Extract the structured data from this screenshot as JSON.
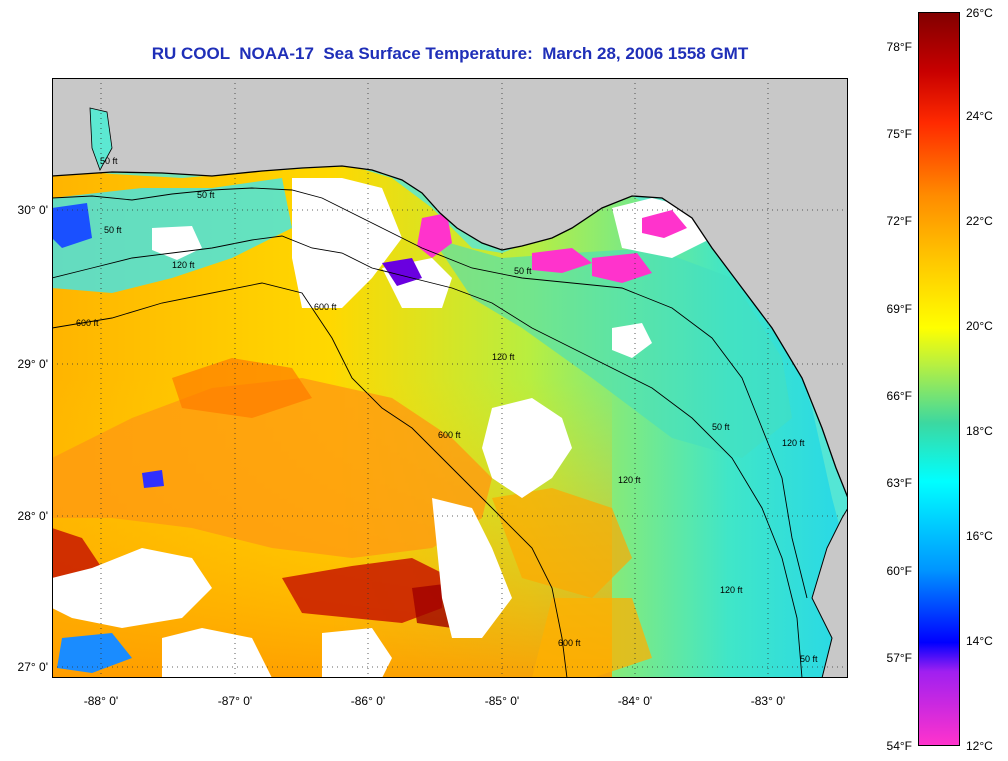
{
  "title": "RU COOL  NOAA-17  Sea Surface Temperature:  March 28, 2006 1558 GMT",
  "lat_labels": [
    "30° 0'",
    "29° 0'",
    "28° 0'",
    "27° 0'"
  ],
  "lon_labels": [
    "-88° 0'",
    "-87° 0'",
    "-86° 0'",
    "-85° 0'",
    "-84° 0'",
    "-83° 0'"
  ],
  "contour_labels": [
    "50 ft",
    "50 ft",
    "50 ft",
    "50 ft",
    "50 ft",
    "120 ft",
    "120 ft",
    "120 ft",
    "120 ft",
    "600 ft",
    "600 ft",
    "600 ft",
    "600 ft",
    "120 ft",
    "50 ft"
  ],
  "colorbar": {
    "fahrenheit": [
      "78°F",
      "75°F",
      "72°F",
      "69°F",
      "66°F",
      "63°F",
      "60°F",
      "57°F",
      "54°F"
    ],
    "celsius": [
      "26°C",
      "24°C",
      "22°C",
      "20°C",
      "18°C",
      "16°C",
      "14°C",
      "12°C"
    ]
  },
  "colors": {
    "land": "#c8c8c8",
    "cloud": "#ffffff",
    "title": "#1f2fb8",
    "scale": [
      "#ff33cc",
      "#a020f0",
      "#0000ff",
      "#0096ff",
      "#00ffff",
      "#3cd8a0",
      "#ffff00",
      "#ffc800",
      "#ff8c00",
      "#ff2a00",
      "#c80000",
      "#820000"
    ]
  }
}
